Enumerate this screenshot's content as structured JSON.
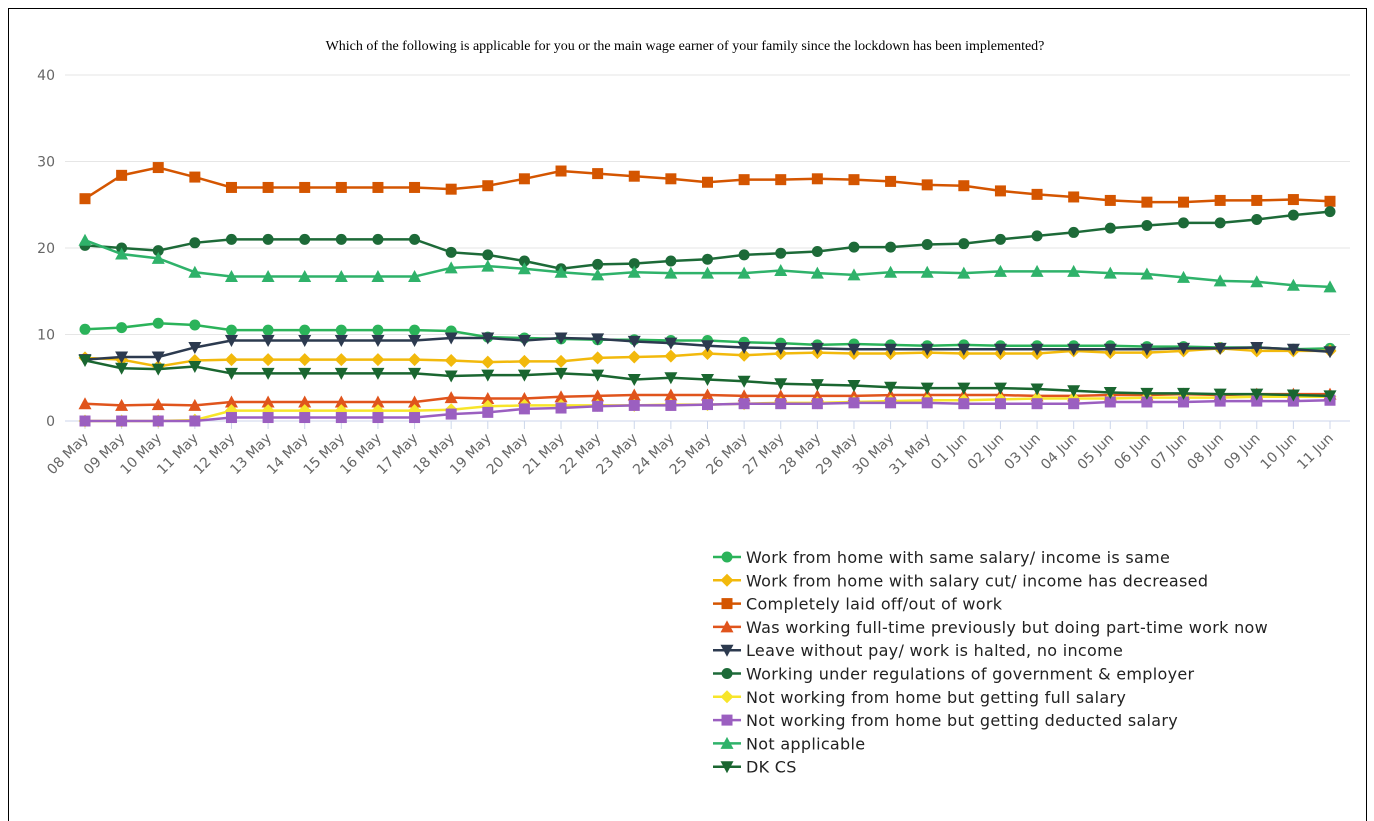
{
  "chart_data": {
    "type": "line",
    "title": "Which of the following is applicable for you or the main wage earner of your family since the lockdown has been implemented?",
    "categories": [
      "08 May",
      "09 May",
      "10 May",
      "11 May",
      "12 May",
      "13 May",
      "14 May",
      "15 May",
      "16 May",
      "17 May",
      "18 May",
      "19 May",
      "20 May",
      "21 May",
      "22 May",
      "23 May",
      "24 May",
      "25 May",
      "26 May",
      "27 May",
      "28 May",
      "29 May",
      "30 May",
      "31 May",
      "01 Jun",
      "02 Jun",
      "03 Jun",
      "04 Jun",
      "05 Jun",
      "06 Jun",
      "07 Jun",
      "08 Jun",
      "09 Jun",
      "10 Jun",
      "11 Jun"
    ],
    "ylim": [
      0,
      40
    ],
    "yticks": [
      0,
      10,
      20,
      30,
      40
    ],
    "grid": true,
    "series": [
      {
        "name": "Work from home with same salary/ income is same",
        "color": "#2bb35a",
        "marker": "circle",
        "values": [
          10.6,
          10.8,
          11.3,
          11.1,
          10.5,
          10.5,
          10.5,
          10.5,
          10.5,
          10.5,
          10.4,
          9.7,
          9.6,
          9.5,
          9.4,
          9.4,
          9.3,
          9.3,
          9.1,
          9.0,
          8.8,
          8.9,
          8.8,
          8.7,
          8.8,
          8.7,
          8.7,
          8.7,
          8.7,
          8.6,
          8.6,
          8.5,
          8.5,
          8.3,
          8.4
        ]
      },
      {
        "name": "Work from home with salary cut/ income has decreased",
        "color": "#f2b90c",
        "marker": "diamond",
        "values": [
          7.3,
          7.1,
          6.3,
          7.0,
          7.1,
          7.1,
          7.1,
          7.1,
          7.1,
          7.1,
          7.0,
          6.8,
          6.9,
          6.9,
          7.3,
          7.4,
          7.5,
          7.8,
          7.6,
          7.8,
          7.9,
          7.8,
          7.8,
          7.9,
          7.8,
          7.8,
          7.8,
          8.1,
          7.9,
          7.9,
          8.1,
          8.4,
          8.1,
          8.1,
          8.1
        ]
      },
      {
        "name": "Completely laid off/out of work",
        "color": "#d45500",
        "marker": "square",
        "values": [
          25.7,
          28.4,
          29.3,
          28.2,
          27.0,
          27.0,
          27.0,
          27.0,
          27.0,
          27.0,
          26.8,
          27.2,
          28.0,
          28.9,
          28.6,
          28.3,
          28.0,
          27.6,
          27.9,
          27.9,
          28.0,
          27.9,
          27.7,
          27.3,
          27.2,
          26.6,
          26.2,
          25.9,
          25.5,
          25.3,
          25.3,
          25.5,
          25.5,
          25.6,
          25.4
        ]
      },
      {
        "name": "Was working full-time previously but doing part-time work now",
        "color": "#e0541c",
        "marker": "triangle",
        "values": [
          2.0,
          1.8,
          1.9,
          1.8,
          2.2,
          2.2,
          2.2,
          2.2,
          2.2,
          2.2,
          2.7,
          2.6,
          2.6,
          2.8,
          2.9,
          3.0,
          3.0,
          3.0,
          2.9,
          2.9,
          2.9,
          2.9,
          3.0,
          3.0,
          3.0,
          3.0,
          2.9,
          2.9,
          3.0,
          3.0,
          3.1,
          3.0,
          3.1,
          3.1,
          3.1
        ]
      },
      {
        "name": "Leave without pay/ work is halted, no income",
        "color": "#2c3a4f",
        "marker": "triangle-down",
        "values": [
          7.1,
          7.4,
          7.4,
          8.5,
          9.3,
          9.3,
          9.3,
          9.3,
          9.3,
          9.3,
          9.6,
          9.6,
          9.3,
          9.6,
          9.5,
          9.2,
          9.0,
          8.7,
          8.5,
          8.4,
          8.4,
          8.3,
          8.3,
          8.3,
          8.3,
          8.3,
          8.3,
          8.3,
          8.3,
          8.3,
          8.4,
          8.4,
          8.5,
          8.3,
          8.0
        ]
      },
      {
        "name": "Working under regulations of government & employer",
        "color": "#1d6a38",
        "marker": "circle",
        "values": [
          20.3,
          20.0,
          19.7,
          20.6,
          21.0,
          21.0,
          21.0,
          21.0,
          21.0,
          21.0,
          19.5,
          19.2,
          18.5,
          17.6,
          18.1,
          18.2,
          18.5,
          18.7,
          19.2,
          19.4,
          19.6,
          20.1,
          20.1,
          20.4,
          20.5,
          21.0,
          21.4,
          21.8,
          22.3,
          22.6,
          22.9,
          22.9,
          23.3,
          23.8,
          24.2
        ]
      },
      {
        "name": "Not working from home but getting full salary",
        "color": "#f7e52a",
        "marker": "diamond",
        "values": [
          0,
          0,
          0,
          0.1,
          1.2,
          1.2,
          1.2,
          1.2,
          1.2,
          1.2,
          1.3,
          1.7,
          1.8,
          1.8,
          1.8,
          1.8,
          1.9,
          1.9,
          2.0,
          2.1,
          2.1,
          2.2,
          2.3,
          2.4,
          2.4,
          2.5,
          2.6,
          2.6,
          2.6,
          2.7,
          2.7,
          2.7,
          2.8,
          2.8,
          2.8
        ]
      },
      {
        "name": "Not working from home but getting deducted salary",
        "color": "#9b5fc0",
        "marker": "square",
        "values": [
          0,
          0,
          0,
          0,
          0.4,
          0.4,
          0.4,
          0.4,
          0.4,
          0.4,
          0.8,
          1.0,
          1.4,
          1.5,
          1.7,
          1.8,
          1.8,
          1.9,
          2.0,
          2.0,
          2.0,
          2.1,
          2.1,
          2.1,
          2.0,
          2.0,
          2.0,
          2.0,
          2.2,
          2.2,
          2.2,
          2.3,
          2.3,
          2.3,
          2.4
        ]
      },
      {
        "name": "Not applicable",
        "color": "#2fb26a",
        "marker": "triangle",
        "values": [
          20.9,
          19.3,
          18.8,
          17.2,
          16.7,
          16.7,
          16.7,
          16.7,
          16.7,
          16.7,
          17.7,
          17.9,
          17.6,
          17.2,
          16.9,
          17.2,
          17.1,
          17.1,
          17.1,
          17.4,
          17.1,
          16.9,
          17.2,
          17.2,
          17.1,
          17.3,
          17.3,
          17.3,
          17.1,
          17.0,
          16.6,
          16.2,
          16.1,
          15.7,
          15.5
        ]
      },
      {
        "name": "DK CS",
        "color": "#1a6630",
        "marker": "triangle-down",
        "values": [
          7.0,
          6.1,
          6.0,
          6.3,
          5.5,
          5.5,
          5.5,
          5.5,
          5.5,
          5.5,
          5.2,
          5.3,
          5.3,
          5.5,
          5.3,
          4.8,
          5.0,
          4.8,
          4.6,
          4.3,
          4.2,
          4.1,
          3.9,
          3.8,
          3.8,
          3.8,
          3.7,
          3.5,
          3.3,
          3.2,
          3.2,
          3.1,
          3.1,
          3.0,
          2.9
        ]
      }
    ]
  }
}
